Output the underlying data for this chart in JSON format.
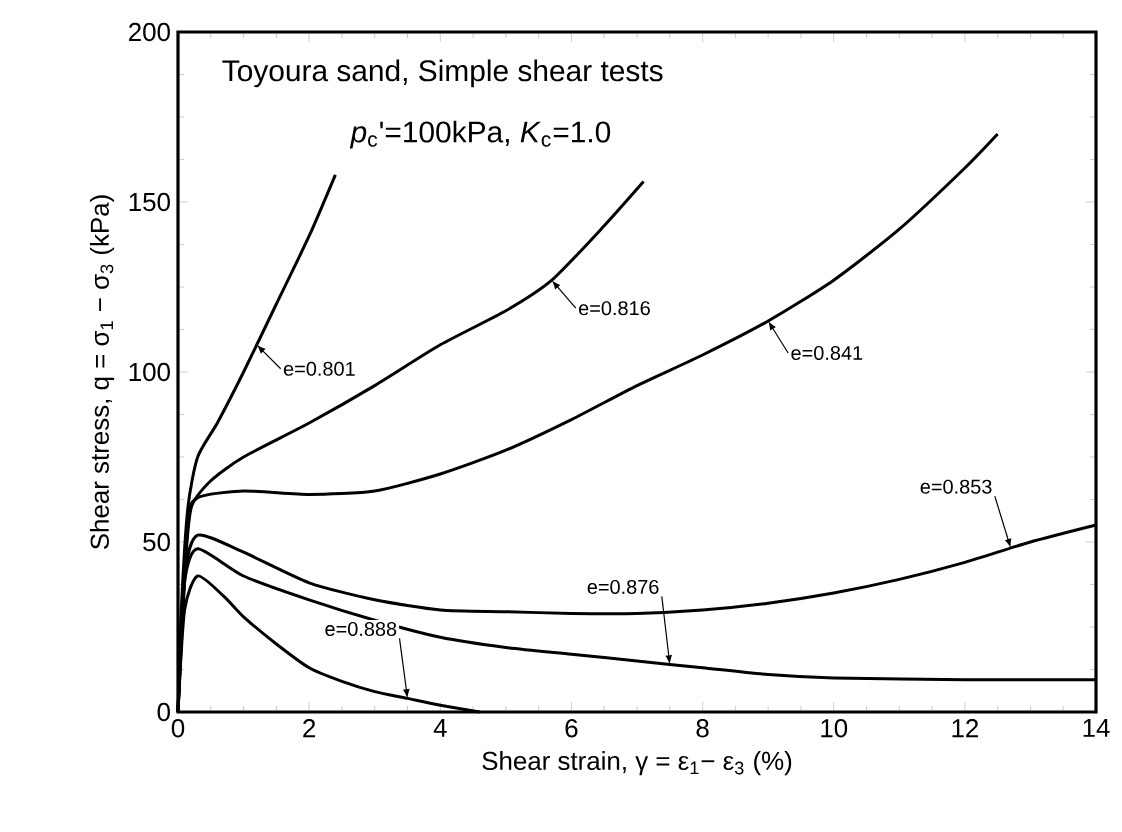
{
  "chart_data": {
    "type": "line",
    "title": "Toyoura sand, Simple shear tests",
    "subtitle": "*p*$_{c}$'=100kPa, *K*$_{c}$=1.0",
    "xlabel": "Shear strain, γ = ε$_{1}$− ε$_{3}$ (%)",
    "ylabel": "Shear stress, q = σ$_{1}$ − σ$_{3}$ (kPa)",
    "xlim": [
      0,
      14
    ],
    "ylim": [
      0,
      200
    ],
    "xticks": [
      0,
      2,
      4,
      6,
      8,
      10,
      12,
      14
    ],
    "yticks": [
      0,
      50,
      100,
      150,
      200
    ],
    "grid": false,
    "marker": "none",
    "line_style": "solid",
    "series": [
      {
        "color": "#000000",
        "x": [
          0,
          0.05,
          0.15,
          0.3,
          0.6,
          1.0,
          1.5,
          2.0,
          2.4
        ],
        "values": [
          0,
          30,
          60,
          75,
          85,
          100,
          120,
          140,
          158
        ]
      },
      {
        "color": "#000000",
        "x": [
          0,
          0.1,
          0.2,
          0.5,
          1,
          2,
          3,
          4,
          5,
          5.7,
          6.5,
          7.1
        ],
        "values": [
          0,
          40,
          60,
          68,
          75,
          85,
          96,
          108,
          118,
          127,
          143,
          156
        ]
      },
      {
        "color": "#000000",
        "x": [
          0,
          0.15,
          0.3,
          1,
          2,
          3,
          4,
          5,
          6,
          7,
          8,
          9,
          10,
          11,
          12,
          12.5
        ],
        "values": [
          0,
          55,
          63,
          65,
          64,
          65,
          70,
          77,
          86,
          96,
          105,
          115,
          127,
          142,
          160,
          170
        ]
      },
      {
        "color": "#000000",
        "x": [
          0,
          0.1,
          0.3,
          1,
          2,
          3,
          4,
          5,
          6,
          7,
          8,
          9,
          10,
          11,
          12,
          13,
          14
        ],
        "values": [
          0,
          40,
          52,
          47,
          38,
          33,
          30,
          29.5,
          29,
          29,
          30,
          32,
          35,
          39,
          44,
          50,
          55
        ]
      },
      {
        "color": "#000000",
        "x": [
          0,
          0.1,
          0.3,
          1,
          2,
          3,
          4,
          5,
          6,
          7,
          8,
          9,
          10,
          12,
          14
        ],
        "values": [
          0,
          38,
          48,
          40,
          33,
          27,
          22,
          19,
          17,
          15,
          13,
          11,
          10,
          9.5,
          9.5
        ]
      },
      {
        "color": "#000000",
        "x": [
          0,
          0.1,
          0.3,
          0.7,
          1,
          1.5,
          2,
          2.5,
          3,
          3.5,
          4,
          4.6
        ],
        "values": [
          0,
          30,
          40,
          34,
          28,
          20,
          13,
          9,
          6,
          4,
          2,
          0
        ]
      }
    ],
    "annotations": [
      {
        "text": "e=0.801",
        "x": 1.2,
        "y": 108
      },
      {
        "text": "e=0.816",
        "x": 5.7,
        "y": 127
      },
      {
        "text": "e=0.841",
        "x": 9,
        "y": 115
      },
      {
        "text": "e=0.853",
        "x": 12.7,
        "y": 48.2
      },
      {
        "text": "e=0.876",
        "x": 7.5,
        "y": 14
      },
      {
        "text": "e=0.888",
        "x": 3.5,
        "y": 4
      }
    ]
  }
}
